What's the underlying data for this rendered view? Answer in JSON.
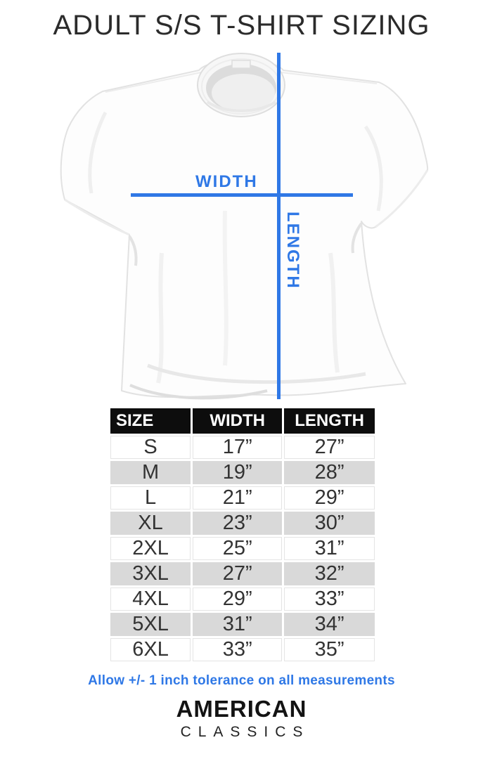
{
  "title": "ADULT S/S T-SHIRT SIZING",
  "diagram": {
    "width_label": "WIDTH",
    "length_label": "LENGTH"
  },
  "sizing_table": {
    "headers": [
      "SIZE",
      "WIDTH",
      "LENGTH"
    ],
    "rows": [
      {
        "size": "S",
        "width": "17”",
        "length": "27”"
      },
      {
        "size": "M",
        "width": "19”",
        "length": "28”"
      },
      {
        "size": "L",
        "width": "21”",
        "length": "29”"
      },
      {
        "size": "XL",
        "width": "23”",
        "length": "30”"
      },
      {
        "size": "2XL",
        "width": "25”",
        "length": "31”"
      },
      {
        "size": "3XL",
        "width": "27”",
        "length": "32”"
      },
      {
        "size": "4XL",
        "width": "29”",
        "length": "33”"
      },
      {
        "size": "5XL",
        "width": "31”",
        "length": "34”"
      },
      {
        "size": "6XL",
        "width": "33”",
        "length": "35”"
      }
    ]
  },
  "tolerance_note": "Allow +/- 1 inch tolerance on all measurements",
  "brand": {
    "name": "AMERICAN",
    "sub": "CLASSICS"
  },
  "colors": {
    "accent_blue": "#2f78e6",
    "table_header_bg": "#0d0d0d",
    "row_alt_gray": "#d9d9d9"
  }
}
